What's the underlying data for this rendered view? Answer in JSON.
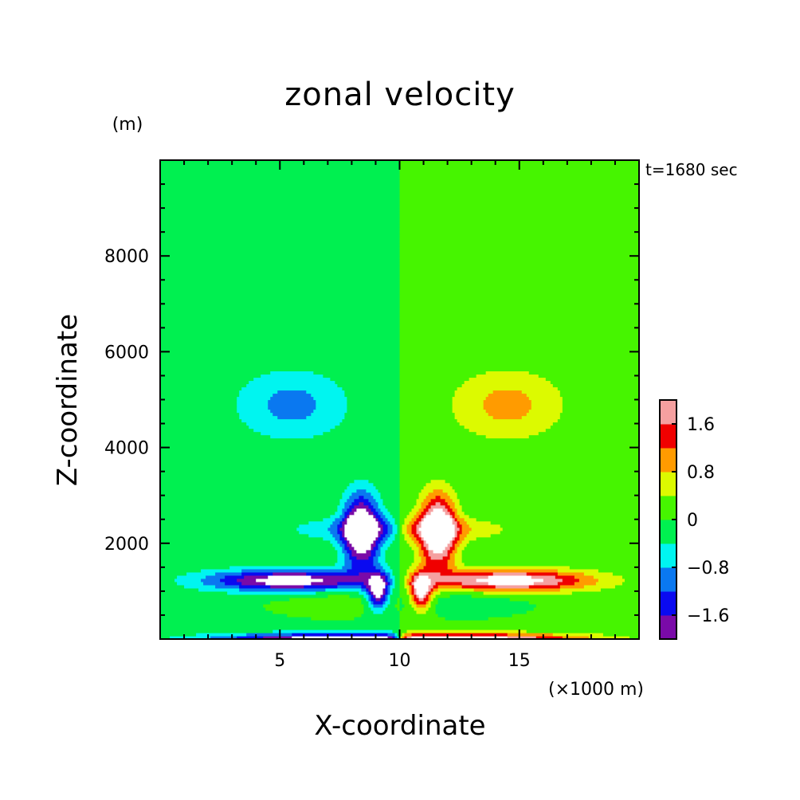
{
  "chart_data": {
    "type": "heatmap",
    "title": "zonal velocity",
    "xlabel": "X-coordinate",
    "ylabel": "Z-coordinate",
    "x_unit": "(×1000 m)",
    "y_unit": "(m)",
    "time_label": "t=1680 sec",
    "xlim": [
      0,
      20
    ],
    "ylim": [
      0,
      10000
    ],
    "x_ticks": [
      5,
      10,
      15
    ],
    "x_tick_labels": [
      "5",
      "10",
      "15"
    ],
    "y_ticks": [
      2000,
      4000,
      6000,
      8000
    ],
    "y_tick_labels": [
      "2000",
      "4000",
      "6000",
      "8000"
    ],
    "colorbar": {
      "levels": [
        -2.0,
        -1.6,
        -1.2,
        -0.8,
        -0.4,
        0,
        0.4,
        0.8,
        1.2,
        1.6,
        2.0
      ],
      "labels": [
        "1.6",
        "0.8",
        "0",
        "−0.8",
        "−1.6"
      ],
      "label_values": [
        1.6,
        0.8,
        0,
        -0.8,
        -1.6
      ],
      "colors": [
        "#7a0aa8",
        "#0a0af0",
        "#0a78f0",
        "#00f5f0",
        "#00f050",
        "#46f500",
        "#dcfa00",
        "#ff9b00",
        "#f00000",
        "#f5a0a0"
      ],
      "under_color": "#ffffff",
      "over_color": "#ffffff"
    },
    "grid": false,
    "features": [
      {
        "name": "upper-left negative cell",
        "center": [
          5.5,
          4900
        ],
        "value": -0.6
      },
      {
        "name": "upper-right positive cell",
        "center": [
          14.5,
          4900
        ],
        "value": 0.6
      },
      {
        "name": "left low-level negative jet",
        "center": [
          5.5,
          1200
        ],
        "value": -1.8
      },
      {
        "name": "right low-level positive jet",
        "center": [
          14.5,
          1200
        ],
        "value": 1.6
      },
      {
        "name": "central left strong negative core",
        "center": [
          8.7,
          2300
        ],
        "value": -2.2
      },
      {
        "name": "central right strong positive core",
        "center": [
          11.3,
          2300
        ],
        "value": 2.2
      }
    ]
  }
}
